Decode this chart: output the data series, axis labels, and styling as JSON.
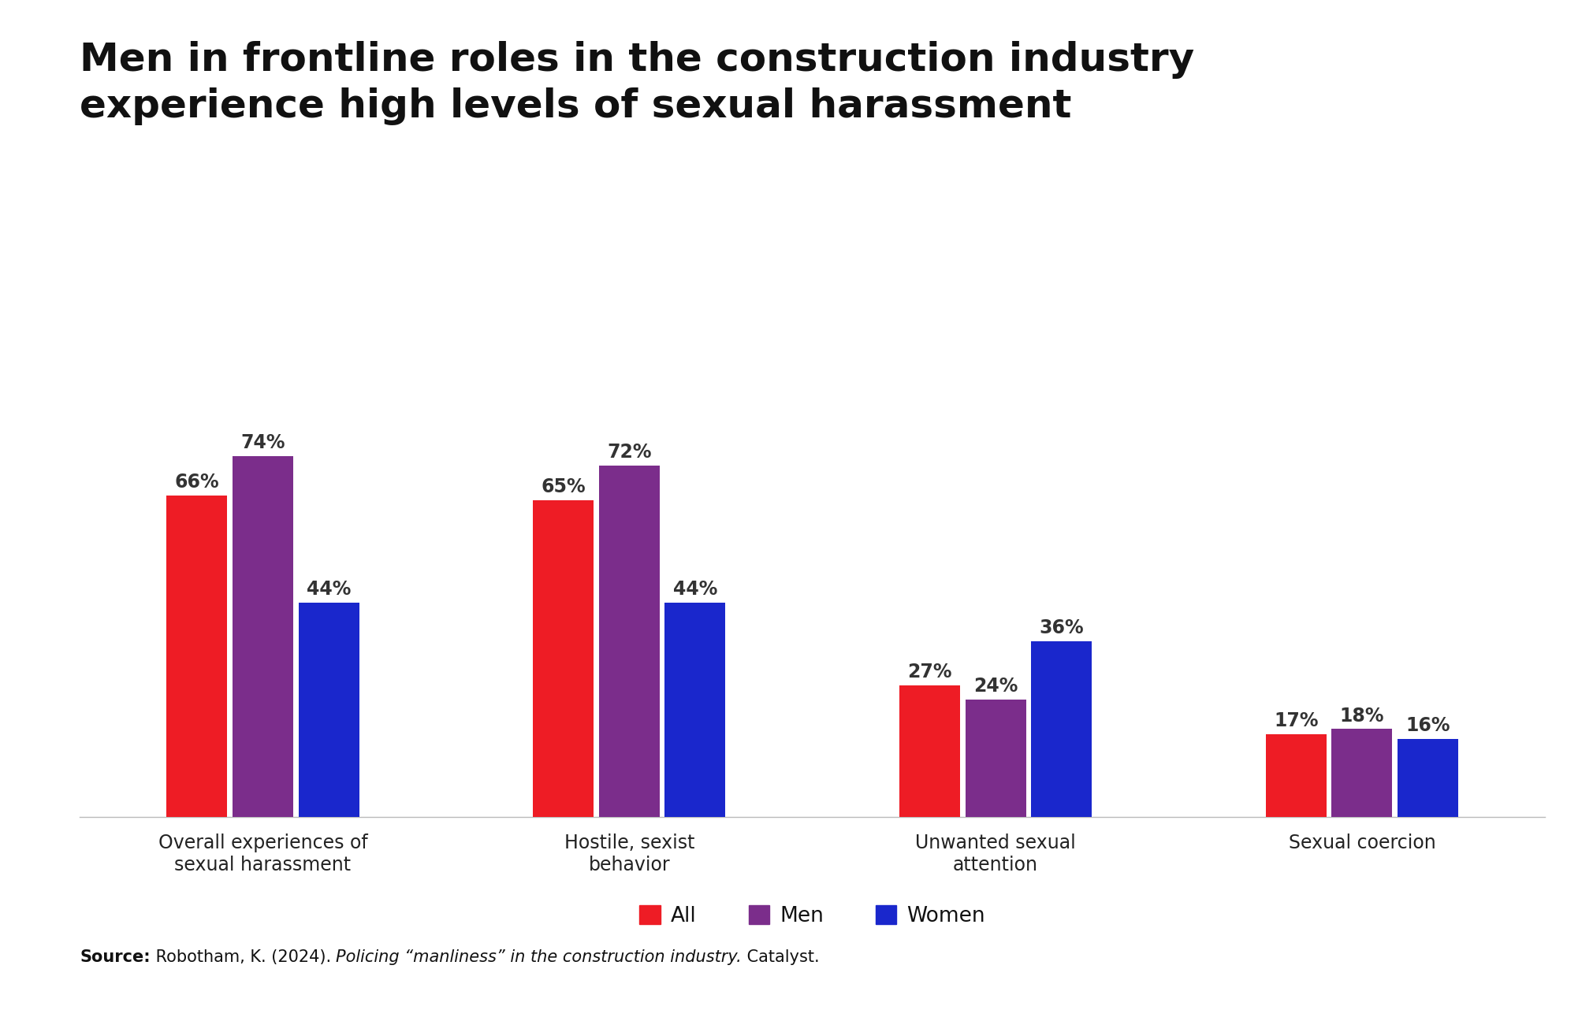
{
  "title_line1": "Men in frontline roles in the construction industry",
  "title_line2": "experience high levels of sexual harassment",
  "categories": [
    "Overall experiences of\nsexual harassment",
    "Hostile, sexist\nbehavior",
    "Unwanted sexual\nattention",
    "Sexual coercion"
  ],
  "series": {
    "All": [
      66,
      65,
      27,
      17
    ],
    "Men": [
      74,
      72,
      24,
      18
    ],
    "Women": [
      44,
      44,
      36,
      16
    ]
  },
  "colors": {
    "All": "#ee1c25",
    "Men": "#7b2d8b",
    "Women": "#1a27cc"
  },
  "bar_width": 0.18,
  "ylim": [
    0,
    88
  ],
  "label_fontsize": 17,
  "value_fontsize": 17,
  "title_fontsize": 36,
  "legend_fontsize": 19,
  "source_bold": "Source:",
  "source_normal": " Robotham, K. (2024). ",
  "source_italic": "Policing “manliness” in the construction industry.",
  "source_end": " Catalyst.",
  "background_color": "#ffffff",
  "axis_label_color": "#222222",
  "value_label_color": "#333333"
}
